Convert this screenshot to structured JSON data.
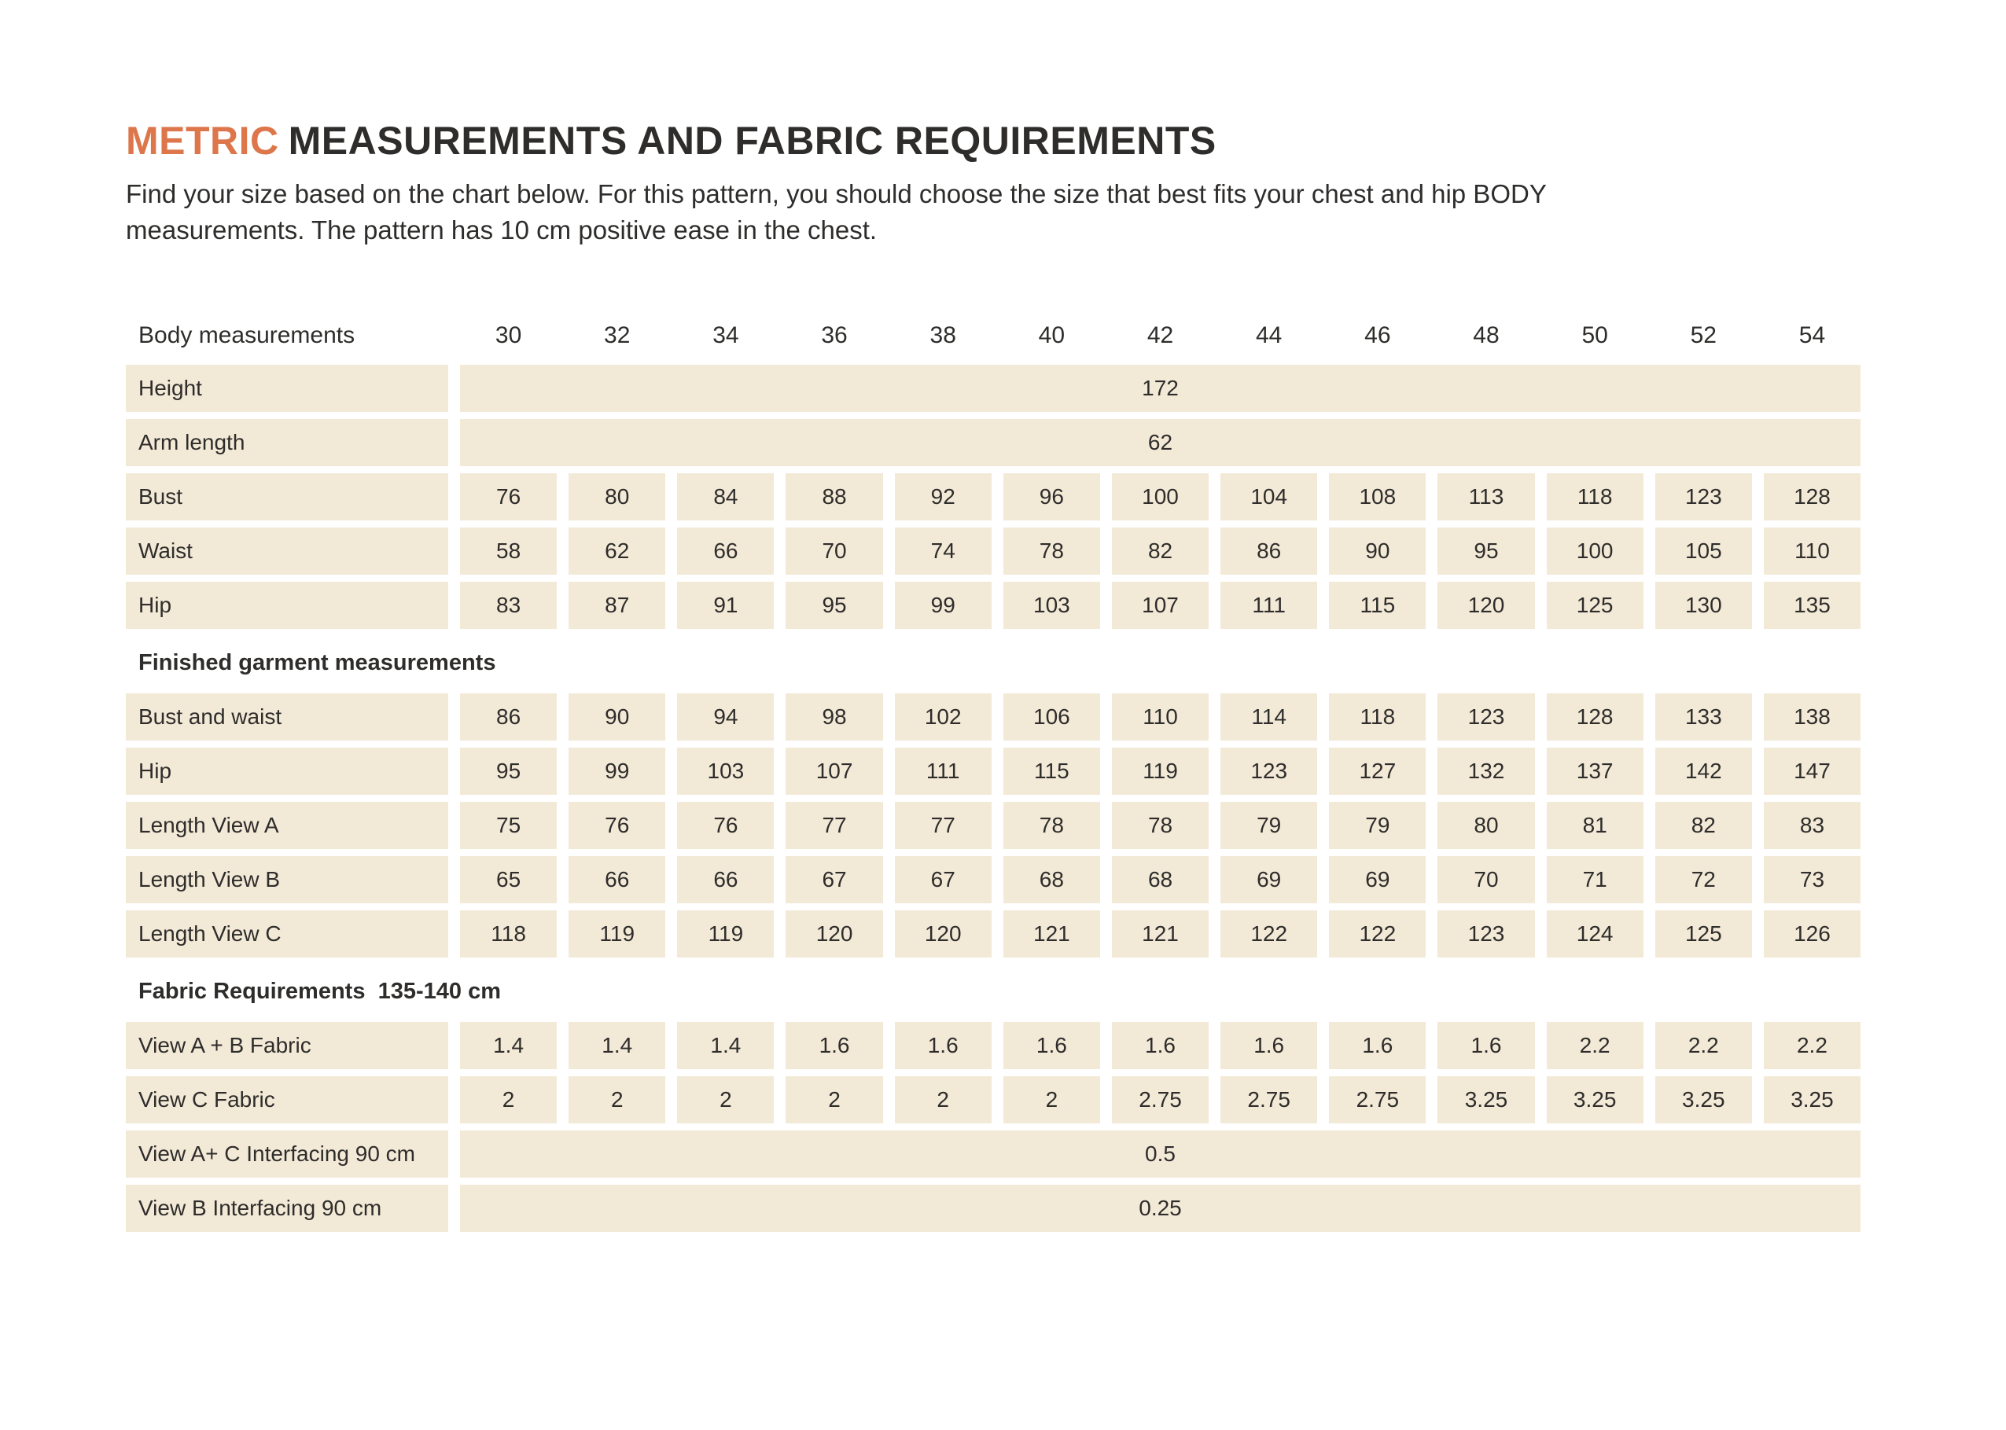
{
  "colors": {
    "accent": "#DD764B",
    "row_bg": "#F3E9D7",
    "text": "#2E2D2B"
  },
  "header": {
    "title_accent": "METRIC",
    "title_rest": "MEASUREMENTS AND FABRIC REQUIREMENTS",
    "subtitle_line1": "Find your size based on the chart below. For this pattern, you should choose the size that best fits your chest and hip BODY",
    "subtitle_line2": "measurements. The pattern has 10 cm positive ease in the chest."
  },
  "table": {
    "header_label": "Body measurements",
    "sizes": [
      "30",
      "32",
      "34",
      "36",
      "38",
      "40",
      "42",
      "44",
      "46",
      "48",
      "50",
      "52",
      "54"
    ],
    "sections": [
      {
        "header": null,
        "rows": [
          {
            "label": "Height",
            "span": "172"
          },
          {
            "label": "Arm length",
            "span": "62"
          },
          {
            "label": "Bust",
            "values": [
              "76",
              "80",
              "84",
              "88",
              "92",
              "96",
              "100",
              "104",
              "108",
              "113",
              "118",
              "123",
              "128"
            ]
          },
          {
            "label": "Waist",
            "values": [
              "58",
              "62",
              "66",
              "70",
              "74",
              "78",
              "82",
              "86",
              "90",
              "95",
              "100",
              "105",
              "110"
            ]
          },
          {
            "label": "Hip",
            "values": [
              "83",
              "87",
              "91",
              "95",
              "99",
              "103",
              "107",
              "111",
              "115",
              "120",
              "125",
              "130",
              "135"
            ]
          }
        ]
      },
      {
        "header": "Finished garment measurements",
        "rows": [
          {
            "label": "Bust and waist",
            "values": [
              "86",
              "90",
              "94",
              "98",
              "102",
              "106",
              "110",
              "114",
              "118",
              "123",
              "128",
              "133",
              "138"
            ]
          },
          {
            "label": "Hip",
            "values": [
              "95",
              "99",
              "103",
              "107",
              "111",
              "115",
              "119",
              "123",
              "127",
              "132",
              "137",
              "142",
              "147"
            ]
          },
          {
            "label": "Length View A",
            "values": [
              "75",
              "76",
              "76",
              "77",
              "77",
              "78",
              "78",
              "79",
              "79",
              "80",
              "81",
              "82",
              "83"
            ]
          },
          {
            "label": "Length View B",
            "values": [
              "65",
              "66",
              "66",
              "67",
              "67",
              "68",
              "68",
              "69",
              "69",
              "70",
              "71",
              "72",
              "73"
            ]
          },
          {
            "label": "Length View C",
            "values": [
              "118",
              "119",
              "119",
              "120",
              "120",
              "121",
              "121",
              "122",
              "122",
              "123",
              "124",
              "125",
              "126"
            ]
          }
        ]
      },
      {
        "header": "Fabric Requirements  135-140 cm",
        "rows": [
          {
            "label": "View A + B Fabric",
            "values": [
              "1.4",
              "1.4",
              "1.4",
              "1.6",
              "1.6",
              "1.6",
              "1.6",
              "1.6",
              "1.6",
              "1.6",
              "2.2",
              "2.2",
              "2.2"
            ]
          },
          {
            "label": "View C Fabric",
            "values": [
              "2",
              "2",
              "2",
              "2",
              "2",
              "2",
              "2.75",
              "2.75",
              "2.75",
              "3.25",
              "3.25",
              "3.25",
              "3.25"
            ]
          },
          {
            "label": "View A+ C Interfacing 90 cm",
            "span": "0.5"
          },
          {
            "label": "View B Interfacing 90 cm",
            "span": "0.25"
          }
        ]
      }
    ]
  }
}
